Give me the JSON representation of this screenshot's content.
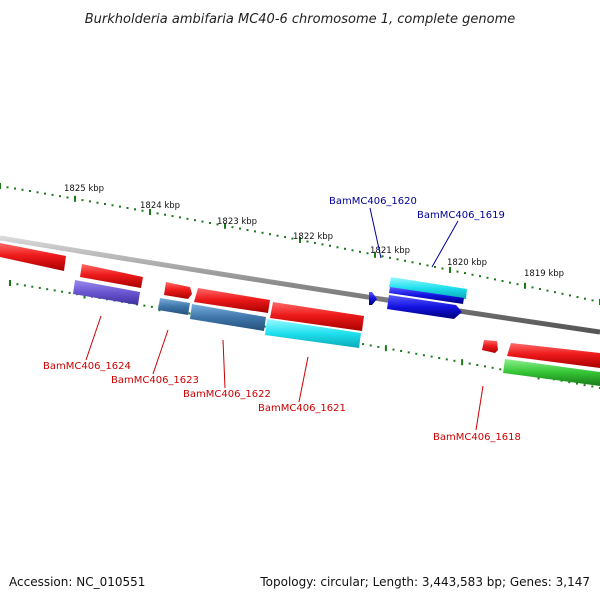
{
  "title": "Burkholderia ambifaria MC40-6 chromosome 1, complete genome",
  "footer": {
    "accession": "Accession: NC_010551",
    "summary": "Topology: circular; Length: 3,443,583 bp; Genes: 3,147"
  },
  "colors": {
    "forward_gene": "#e8121c",
    "label_red": "#cc0000",
    "label_blue": "#000099",
    "backbone": "#8a8a8a",
    "ticks": "#1a7a1a"
  },
  "scale": {
    "kbp_labels": [
      "1825 kbp",
      "1824 kbp",
      "1823 kbp",
      "1822 kbp",
      "1821 kbp",
      "1820 kbp",
      "1819 kbp"
    ]
  },
  "genes": [
    {
      "name": "BamMC406_1624",
      "color": "#7766dd"
    },
    {
      "name": "BamMC406_1623",
      "color": "#4a7fb5"
    },
    {
      "name": "BamMC406_1622",
      "color": "#4a7fb5"
    },
    {
      "name": "BamMC406_1621",
      "color": "#22e5ee"
    },
    {
      "name": "BamMC406_1620",
      "color": "#1414e0"
    },
    {
      "name": "BamMC406_1619",
      "color": "#1414e0"
    },
    {
      "name": "BamMC406_1618",
      "color": "#33cc33"
    }
  ]
}
